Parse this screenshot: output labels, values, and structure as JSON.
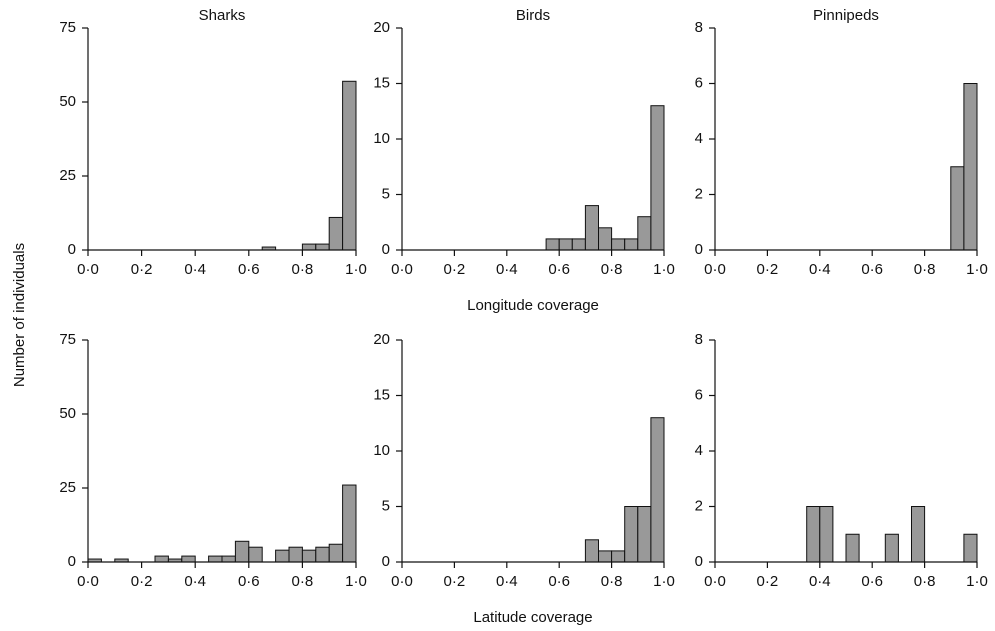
{
  "ylabel": "Number of individuals",
  "chart_data": [
    {
      "type": "histogram",
      "title": "Sharks",
      "color": "#999999",
      "bins": [
        0,
        0.05,
        0.1,
        0.15,
        0.2,
        0.25,
        0.3,
        0.35,
        0.4,
        0.45,
        0.5,
        0.55,
        0.6,
        0.65,
        0.7,
        0.75,
        0.8,
        0.85,
        0.9,
        0.95,
        1
      ],
      "values": [
        0,
        0,
        0,
        0,
        0,
        0,
        0,
        0,
        0,
        0,
        0,
        0,
        0,
        1,
        0,
        0,
        2,
        2,
        11,
        57
      ],
      "xlim": [
        0,
        1
      ],
      "xticks": [
        {
          "value": 0,
          "label": "0·0"
        },
        {
          "value": 0.2,
          "label": "0·2"
        },
        {
          "value": 0.4,
          "label": "0·4"
        },
        {
          "value": 0.6,
          "label": "0·6"
        },
        {
          "value": 0.8,
          "label": "0·8"
        },
        {
          "value": 1,
          "label": "1·0"
        }
      ],
      "ylim": [
        0,
        75
      ],
      "yticks": [
        0,
        25,
        50,
        75
      ]
    },
    {
      "type": "histogram",
      "title": "Birds",
      "xlabel": "Longitude coverage",
      "color": "#999999",
      "bins": [
        0,
        0.05,
        0.1,
        0.15,
        0.2,
        0.25,
        0.3,
        0.35,
        0.4,
        0.45,
        0.5,
        0.55,
        0.6,
        0.65,
        0.7,
        0.75,
        0.8,
        0.85,
        0.9,
        0.95,
        1
      ],
      "values": [
        0,
        0,
        0,
        0,
        0,
        0,
        0,
        0,
        0,
        0,
        0,
        1,
        1,
        1,
        4,
        2,
        1,
        1,
        3,
        13
      ],
      "xlim": [
        0,
        1
      ],
      "xticks": [
        {
          "value": 0,
          "label": "0·0"
        },
        {
          "value": 0.2,
          "label": "0·2"
        },
        {
          "value": 0.4,
          "label": "0·4"
        },
        {
          "value": 0.6,
          "label": "0·6"
        },
        {
          "value": 0.8,
          "label": "0·8"
        },
        {
          "value": 1,
          "label": "1·0"
        }
      ],
      "ylim": [
        0,
        20
      ],
      "yticks": [
        0,
        5,
        10,
        15,
        20
      ]
    },
    {
      "type": "histogram",
      "title": "Pinnipeds",
      "color": "#999999",
      "bins": [
        0,
        0.05,
        0.1,
        0.15,
        0.2,
        0.25,
        0.3,
        0.35,
        0.4,
        0.45,
        0.5,
        0.55,
        0.6,
        0.65,
        0.7,
        0.75,
        0.8,
        0.85,
        0.9,
        0.95,
        1
      ],
      "values": [
        0,
        0,
        0,
        0,
        0,
        0,
        0,
        0,
        0,
        0,
        0,
        0,
        0,
        0,
        0,
        0,
        0,
        0,
        3,
        6
      ],
      "xlim": [
        0,
        1
      ],
      "xticks": [
        {
          "value": 0,
          "label": "0·0"
        },
        {
          "value": 0.2,
          "label": "0·2"
        },
        {
          "value": 0.4,
          "label": "0·4"
        },
        {
          "value": 0.6,
          "label": "0·6"
        },
        {
          "value": 0.8,
          "label": "0·8"
        },
        {
          "value": 1,
          "label": "1·0"
        }
      ],
      "ylim": [
        0,
        8
      ],
      "yticks": [
        0,
        2,
        4,
        6,
        8
      ]
    },
    {
      "type": "histogram",
      "color": "#999999",
      "bins": [
        0,
        0.05,
        0.1,
        0.15,
        0.2,
        0.25,
        0.3,
        0.35,
        0.4,
        0.45,
        0.5,
        0.55,
        0.6,
        0.65,
        0.7,
        0.75,
        0.8,
        0.85,
        0.9,
        0.95,
        1
      ],
      "values": [
        1,
        0,
        1,
        0,
        0,
        2,
        1,
        2,
        0,
        2,
        2,
        7,
        5,
        0,
        4,
        5,
        4,
        5,
        6,
        26
      ],
      "xlim": [
        0,
        1
      ],
      "xticks": [
        {
          "value": 0,
          "label": "0·0"
        },
        {
          "value": 0.2,
          "label": "0·2"
        },
        {
          "value": 0.4,
          "label": "0·4"
        },
        {
          "value": 0.6,
          "label": "0·6"
        },
        {
          "value": 0.8,
          "label": "0·8"
        },
        {
          "value": 1,
          "label": "1·0"
        }
      ],
      "ylim": [
        0,
        75
      ],
      "yticks": [
        0,
        25,
        50,
        75
      ]
    },
    {
      "type": "histogram",
      "xlabel": "Latitude coverage",
      "color": "#999999",
      "bins": [
        0,
        0.05,
        0.1,
        0.15,
        0.2,
        0.25,
        0.3,
        0.35,
        0.4,
        0.45,
        0.5,
        0.55,
        0.6,
        0.65,
        0.7,
        0.75,
        0.8,
        0.85,
        0.9,
        0.95,
        1
      ],
      "values": [
        0,
        0,
        0,
        0,
        0,
        0,
        0,
        0,
        0,
        0,
        0,
        0,
        0,
        0,
        2,
        1,
        1,
        5,
        5,
        13
      ],
      "xlim": [
        0,
        1
      ],
      "xticks": [
        {
          "value": 0,
          "label": "0·0"
        },
        {
          "value": 0.2,
          "label": "0·2"
        },
        {
          "value": 0.4,
          "label": "0·4"
        },
        {
          "value": 0.6,
          "label": "0·6"
        },
        {
          "value": 0.8,
          "label": "0·8"
        },
        {
          "value": 1,
          "label": "1·0"
        }
      ],
      "ylim": [
        0,
        20
      ],
      "yticks": [
        0,
        5,
        10,
        15,
        20
      ]
    },
    {
      "type": "histogram",
      "color": "#999999",
      "bins": [
        0,
        0.05,
        0.1,
        0.15,
        0.2,
        0.25,
        0.3,
        0.35,
        0.4,
        0.45,
        0.5,
        0.55,
        0.6,
        0.65,
        0.7,
        0.75,
        0.8,
        0.85,
        0.9,
        0.95,
        1
      ],
      "values": [
        0,
        0,
        0,
        0,
        0,
        0,
        0,
        2,
        2,
        0,
        1,
        0,
        0,
        1,
        0,
        2,
        0,
        0,
        0,
        1
      ],
      "xlim": [
        0,
        1
      ],
      "xticks": [
        {
          "value": 0,
          "label": "0·0"
        },
        {
          "value": 0.2,
          "label": "0·2"
        },
        {
          "value": 0.4,
          "label": "0·4"
        },
        {
          "value": 0.6,
          "label": "0·6"
        },
        {
          "value": 0.8,
          "label": "0·8"
        },
        {
          "value": 1,
          "label": "1·0"
        }
      ],
      "ylim": [
        0,
        8
      ],
      "yticks": [
        0,
        2,
        4,
        6,
        8
      ]
    }
  ]
}
